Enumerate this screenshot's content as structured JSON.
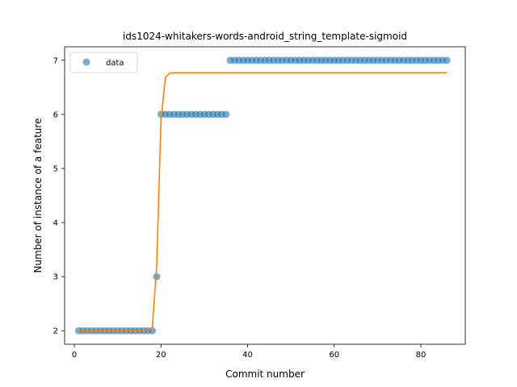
{
  "chart_data": {
    "type": "scatter",
    "title": "ids1024-whitakers-words-android_string_template-sigmoid",
    "xlabel": "Commit number",
    "ylabel": "Number of instance of a feature",
    "xlim": [
      -2.25,
      90.25
    ],
    "ylim": [
      1.75,
      7.25
    ],
    "xticks": [
      0,
      20,
      40,
      60,
      80
    ],
    "yticks": [
      2,
      3,
      4,
      5,
      6,
      7
    ],
    "grid": false,
    "legend": {
      "placement": "top-left",
      "entries": [
        "data"
      ]
    },
    "colors": {
      "data": "#1f77b4",
      "fit": "#ff7f0e"
    },
    "series": [
      {
        "name": "data",
        "kind": "scatter",
        "segments": [
          {
            "x_from": 1,
            "x_to": 18,
            "y": 2
          },
          {
            "x_from": 19,
            "x_to": 19,
            "y": 3
          },
          {
            "x_from": 20,
            "x_to": 35,
            "y": 6
          },
          {
            "x_from": 36,
            "x_to": 86,
            "y": 7
          }
        ]
      },
      {
        "kind": "line",
        "points": [
          [
            1,
            2.0
          ],
          [
            17,
            2.0
          ],
          [
            18,
            2.05
          ],
          [
            19,
            3.2
          ],
          [
            20,
            5.9
          ],
          [
            21,
            6.68
          ],
          [
            22,
            6.76
          ],
          [
            23,
            6.77
          ],
          [
            86,
            6.77
          ]
        ]
      }
    ]
  }
}
